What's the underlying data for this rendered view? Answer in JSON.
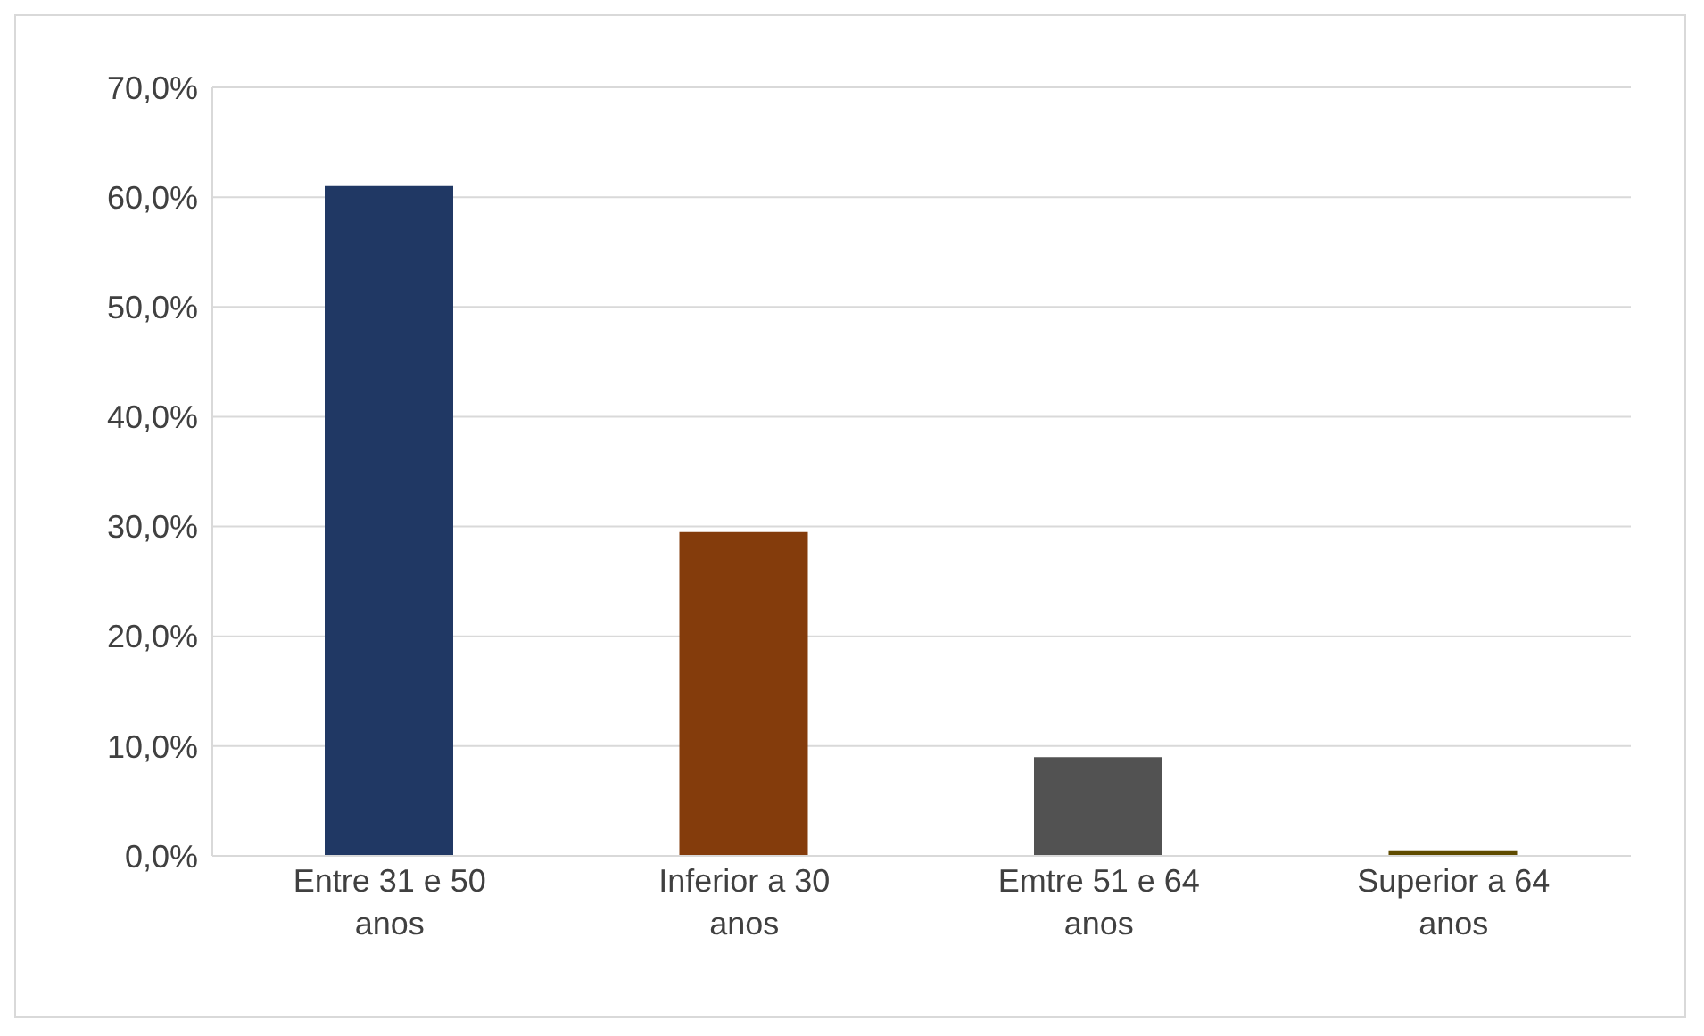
{
  "chart_data": {
    "type": "bar",
    "categories": [
      "Entre 31 e 50 anos",
      "Inferior a 30 anos",
      "Emtre 51 e 64 anos",
      "Superior a 64 anos"
    ],
    "values": [
      61,
      29.5,
      9,
      0.5
    ],
    "colors": [
      "#203864",
      "#843c0c",
      "#525252",
      "#5f4b00"
    ],
    "ylim": [
      0,
      70
    ],
    "yticks": [
      {
        "value": 0,
        "label": "0,0%"
      },
      {
        "value": 10,
        "label": "10,0%"
      },
      {
        "value": 20,
        "label": "20,0%"
      },
      {
        "value": 30,
        "label": "30,0%"
      },
      {
        "value": 40,
        "label": "40,0%"
      },
      {
        "value": 50,
        "label": "50,0%"
      },
      {
        "value": 60,
        "label": "60,0%"
      },
      {
        "value": 70,
        "label": "70,0%"
      }
    ],
    "grid": "y"
  }
}
